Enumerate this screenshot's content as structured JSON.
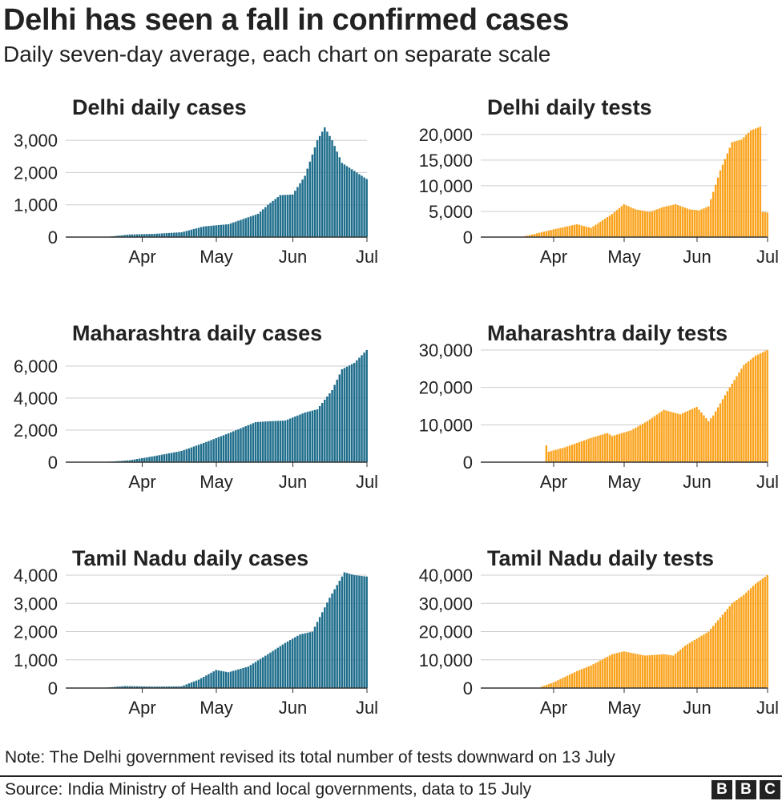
{
  "header": {
    "title": "Delhi has seen a fall in confirmed cases",
    "subtitle": "Daily seven-day average, each chart on separate scale"
  },
  "footer": {
    "note": "Note: The Delhi government revised its total number of tests downward on 13 July",
    "source": "Source: India Ministry of Health and local governments, data to 15 July",
    "logo": [
      "B",
      "B",
      "C"
    ]
  },
  "colors": {
    "cases": "#1f6e8c",
    "tests": "#faa21b",
    "grid": "#cccccc",
    "axis": "#333333"
  },
  "chart_data": [
    {
      "type": "bar",
      "id": "delhi-cases",
      "title": "Delhi daily cases",
      "xlabel": "",
      "ylabel": "",
      "ylim": [
        0,
        3500
      ],
      "grid": true,
      "yticks": [
        0,
        1000,
        2000,
        3000
      ],
      "ytick_labels": [
        "0",
        "1,000",
        "2,000",
        "3,000"
      ],
      "xticks": [
        "Apr",
        "May",
        "Jun",
        "Jul"
      ],
      "x_range": [
        "2020-03-15",
        "2020-07-15"
      ],
      "x": [
        "2020-04-01",
        "2020-04-10",
        "2020-04-20",
        "2020-05-01",
        "2020-05-10",
        "2020-05-20",
        "2020-06-01",
        "2020-06-05",
        "2020-06-10",
        "2020-06-15",
        "2020-06-20",
        "2020-06-25",
        "2020-06-28",
        "2020-07-01",
        "2020-07-05",
        "2020-07-10",
        "2020-07-15"
      ],
      "values": [
        10,
        80,
        100,
        150,
        330,
        400,
        720,
        1000,
        1300,
        1320,
        1900,
        3000,
        3400,
        3000,
        2300,
        2050,
        1800
      ]
    },
    {
      "type": "bar",
      "id": "delhi-tests",
      "title": "Delhi daily tests",
      "xlabel": "",
      "ylabel": "",
      "ylim": [
        0,
        22000
      ],
      "grid": true,
      "yticks": [
        0,
        5000,
        10000,
        15000,
        20000
      ],
      "ytick_labels": [
        "0",
        "5,000",
        "10,000",
        "15,000",
        "20,000"
      ],
      "xticks": [
        "Apr",
        "May",
        "Jun",
        "Jul"
      ],
      "x_range": [
        "2020-03-15",
        "2020-07-15"
      ],
      "x": [
        "2020-04-01",
        "2020-04-05",
        "2020-04-15",
        "2020-04-25",
        "2020-05-01",
        "2020-05-10",
        "2020-05-15",
        "2020-05-20",
        "2020-05-26",
        "2020-06-01",
        "2020-06-06",
        "2020-06-12",
        "2020-06-16",
        "2020-06-20",
        "2020-06-25",
        "2020-06-30",
        "2020-07-04",
        "2020-07-08",
        "2020-07-12",
        "2020-07-13",
        "2020-07-15"
      ],
      "values": [
        0,
        400,
        1500,
        2500,
        1800,
        4500,
        6400,
        5400,
        4900,
        5900,
        6400,
        5400,
        5200,
        6000,
        13000,
        18500,
        19000,
        20800,
        21500,
        4900,
        4800
      ]
    },
    {
      "type": "bar",
      "id": "maharashtra-cases",
      "title": "Maharashtra daily cases",
      "xlabel": "",
      "ylabel": "",
      "ylim": [
        0,
        7000
      ],
      "grid": true,
      "yticks": [
        0,
        2000,
        4000,
        6000
      ],
      "ytick_labels": [
        "0",
        "2,000",
        "4,000",
        "6,000"
      ],
      "xticks": [
        "Apr",
        "May",
        "Jun",
        "Jul"
      ],
      "x_range": [
        "2020-03-15",
        "2020-07-15"
      ],
      "x": [
        "2020-04-01",
        "2020-04-10",
        "2020-04-20",
        "2020-05-01",
        "2020-05-10",
        "2020-05-20",
        "2020-05-31",
        "2020-06-05",
        "2020-06-12",
        "2020-06-20",
        "2020-06-25",
        "2020-07-01",
        "2020-07-05",
        "2020-07-10",
        "2020-07-15"
      ],
      "values": [
        20,
        120,
        380,
        700,
        1200,
        1800,
        2500,
        2550,
        2600,
        3100,
        3300,
        4500,
        5800,
        6200,
        7000
      ]
    },
    {
      "type": "bar",
      "id": "maharashtra-tests",
      "title": "Maharashtra daily tests",
      "xlabel": "",
      "ylabel": "",
      "ylim": [
        0,
        30000
      ],
      "grid": true,
      "yticks": [
        0,
        10000,
        20000,
        30000
      ],
      "ytick_labels": [
        "0",
        "10,000",
        "20,000",
        "30,000"
      ],
      "xticks": [
        "Apr",
        "May",
        "Jun",
        "Jul"
      ],
      "x_range": [
        "2020-03-15",
        "2020-07-15"
      ],
      "x": [
        "2020-04-12",
        "2020-04-13",
        "2020-04-20",
        "2020-05-01",
        "2020-05-08",
        "2020-05-10",
        "2020-05-18",
        "2020-05-25",
        "2020-06-01",
        "2020-06-08",
        "2020-06-15",
        "2020-06-20",
        "2020-06-22",
        "2020-06-28",
        "2020-07-01",
        "2020-07-05",
        "2020-07-10",
        "2020-07-15"
      ],
      "values": [
        4500,
        2800,
        4000,
        6500,
        7800,
        7000,
        8500,
        11000,
        14000,
        12800,
        14800,
        11000,
        12500,
        19000,
        22000,
        26000,
        28500,
        30000
      ]
    },
    {
      "type": "bar",
      "id": "tamil-nadu-cases",
      "title": "Tamil Nadu daily cases",
      "xlabel": "",
      "ylabel": "",
      "ylim": [
        0,
        4000
      ],
      "grid": true,
      "yticks": [
        0,
        1000,
        2000,
        3000,
        4000
      ],
      "ytick_labels": [
        "0",
        "1,000",
        "2,000",
        "3,000",
        "4,000"
      ],
      "xticks": [
        "Apr",
        "May",
        "Jun",
        "Jul"
      ],
      "x_range": [
        "2020-03-15",
        "2020-07-15"
      ],
      "x": [
        "2020-04-01",
        "2020-04-08",
        "2020-04-20",
        "2020-05-01",
        "2020-05-08",
        "2020-05-15",
        "2020-05-20",
        "2020-05-28",
        "2020-06-05",
        "2020-06-12",
        "2020-06-18",
        "2020-06-23",
        "2020-06-30",
        "2020-07-06",
        "2020-07-10",
        "2020-07-15"
      ],
      "values": [
        20,
        70,
        50,
        60,
        300,
        640,
        560,
        760,
        1200,
        1600,
        1900,
        2000,
        3200,
        4100,
        4000,
        3950
      ]
    },
    {
      "type": "bar",
      "id": "tamil-nadu-tests",
      "title": "Tamil Nadu daily tests",
      "xlabel": "",
      "ylabel": "",
      "ylim": [
        0,
        40000
      ],
      "grid": true,
      "yticks": [
        0,
        10000,
        20000,
        30000,
        40000
      ],
      "ytick_labels": [
        "0",
        "10,000",
        "20,000",
        "30,000",
        "40,000"
      ],
      "xticks": [
        "Apr",
        "May",
        "Jun",
        "Jul"
      ],
      "x_range": [
        "2020-03-15",
        "2020-07-15"
      ],
      "x": [
        "2020-04-10",
        "2020-04-15",
        "2020-04-25",
        "2020-05-01",
        "2020-05-10",
        "2020-05-15",
        "2020-05-24",
        "2020-06-01",
        "2020-06-05",
        "2020-06-10",
        "2020-06-20",
        "2020-06-30",
        "2020-07-05",
        "2020-07-10",
        "2020-07-15"
      ],
      "values": [
        500,
        2000,
        6000,
        8000,
        12000,
        13000,
        11500,
        12000,
        11500,
        15000,
        20000,
        30000,
        33000,
        37000,
        40000
      ]
    }
  ]
}
